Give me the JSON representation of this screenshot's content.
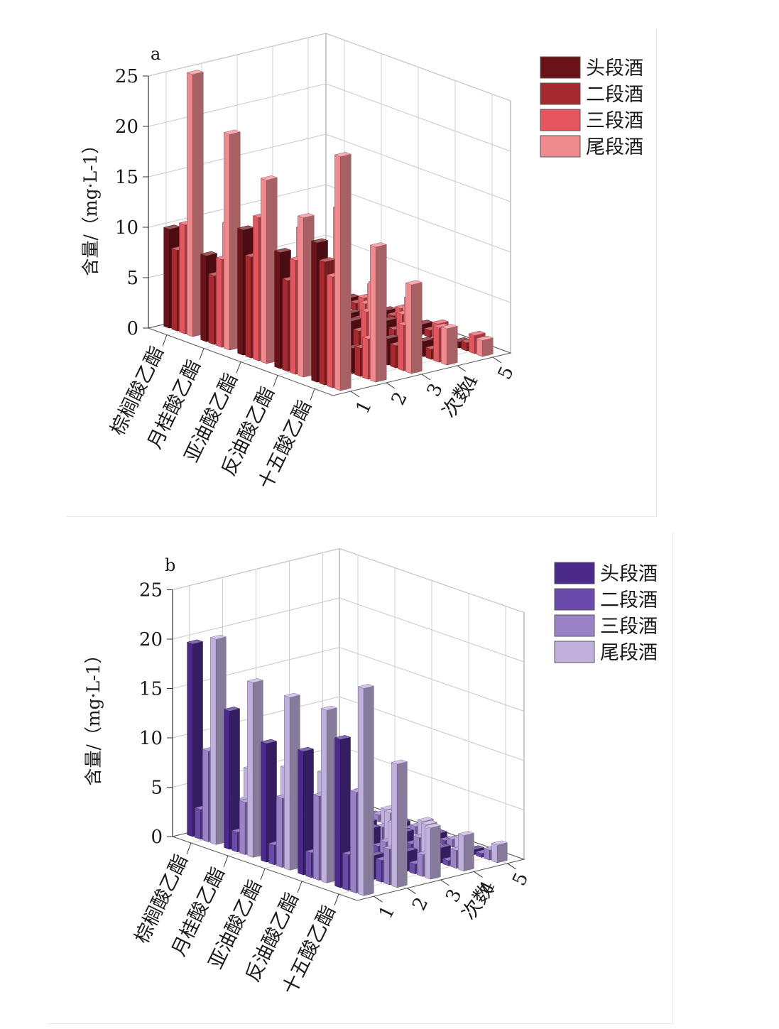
{
  "chart_data": [
    {
      "type": "bar",
      "panel_label": "a",
      "ylabel": "含量/（mg·L-1）",
      "xlabel": "次数",
      "ylim": [
        0,
        25
      ],
      "yticks": [
        "0",
        "5",
        "10",
        "15",
        "20",
        "25"
      ],
      "depth_ticks": [
        "1",
        "2",
        "3",
        "4",
        "5"
      ],
      "categories": [
        "棕榈酸乙酯",
        "月桂酸乙酯",
        "亚油酸乙酯",
        "反油酸乙酯",
        "十五酸乙酯"
      ],
      "legend": [
        "头段酒",
        "二段酒",
        "三段酒",
        "尾段酒"
      ],
      "colors": [
        "#6b1219",
        "#a62b30",
        "#e4555e",
        "#ef8a8f"
      ],
      "series": [
        {
          "name": "头段酒",
          "values": [
            [
              9.8,
              8.5,
              12.4,
              11.5,
              13.8
            ],
            [
              5.3,
              3.5,
              4.2,
              3.4,
              2.5
            ],
            [
              2.8,
              2.5,
              2.3,
              3.0,
              2.6
            ],
            [
              2.2,
              2.0,
              1.6,
              2.2,
              1.5
            ],
            [
              1.0,
              0.9,
              1.0,
              1.0,
              0.6
            ]
          ]
        },
        {
          "name": "二段酒",
          "values": [
            [
              8.0,
              6.8,
              10.0,
              9.0,
              12.2
            ],
            [
              2.3,
              2.8,
              2.8,
              2.3,
              2.8
            ],
            [
              2.0,
              2.2,
              2.0,
              2.3,
              2.2
            ],
            [
              1.5,
              1.2,
              1.3,
              1.6,
              1.0
            ],
            [
              0.5,
              0.7,
              0.8,
              0.7,
              0.8
            ]
          ]
        },
        {
          "name": "三段酒",
          "values": [
            [
              10.8,
              8.7,
              14.2,
              11.3,
              11.0
            ],
            [
              4.8,
              4.5,
              7.9,
              4.5,
              4.0
            ],
            [
              2.9,
              3.8,
              4.0,
              4.5,
              4.5
            ],
            [
              2.8,
              3.0,
              3.1,
              3.4,
              3.4
            ],
            [
              0.9,
              1.5,
              1.8,
              1.6,
              1.8
            ]
          ]
        },
        {
          "name": "尾段酒",
          "values": [
            [
              26.0,
              21.4,
              18.2,
              15.8,
              23.2
            ],
            [
              10.3,
              11.2,
              12.5,
              15.8,
              13.4
            ],
            [
              4.2,
              5.5,
              6.7,
              7.6,
              8.8
            ],
            [
              4.6,
              3.6,
              5.2,
              5.2,
              3.6
            ],
            [
              1.2,
              1.2,
              2.2,
              1.4,
              1.6
            ]
          ]
        }
      ]
    },
    {
      "type": "bar",
      "panel_label": "b",
      "ylabel": "含量/（mg·L-1）",
      "xlabel": "次数",
      "ylim": [
        0,
        25
      ],
      "yticks": [
        "0",
        "5",
        "10",
        "15",
        "20",
        "25"
      ],
      "depth_ticks": [
        "1",
        "2",
        "3",
        "4",
        "5"
      ],
      "categories": [
        "棕榈酸乙酯",
        "月桂酸乙酯",
        "亚油酸乙酯",
        "反油酸乙酯",
        "十五酸乙酯"
      ],
      "legend": [
        "头段酒",
        "二段酒",
        "三段酒",
        "尾段酒"
      ],
      "colors": [
        "#4b2a8a",
        "#6a4aaa",
        "#9a82c6",
        "#c0b0dd"
      ],
      "series": [
        {
          "name": "头段酒",
          "values": [
            [
              19.5,
              14.0,
              12.0,
              12.5,
              15.0
            ],
            [
              3.0,
              2.5,
              3.6,
              2.8,
              2.4
            ],
            [
              2.6,
              2.5,
              2.5,
              3.0,
              2.0
            ],
            [
              1.8,
              1.8,
              1.5,
              1.8,
              1.5
            ],
            [
              0.8,
              0.8,
              0.6,
              0.8,
              0.5
            ]
          ]
        },
        {
          "name": "二段酒",
          "values": [
            [
              3.0,
              2.0,
              2.0,
              2.5,
              3.6
            ],
            [
              1.6,
              1.8,
              1.5,
              2.0,
              2.2
            ],
            [
              1.0,
              1.2,
              1.6,
              1.5,
              1.0
            ],
            [
              0.8,
              0.7,
              0.8,
              0.9,
              0.5
            ],
            [
              0.4,
              0.4,
              0.3,
              0.4,
              0.4
            ]
          ]
        },
        {
          "name": "三段酒",
          "values": [
            [
              9.2,
              5.3,
              7.0,
              8.5,
              10.2
            ],
            [
              3.3,
              3.0,
              3.4,
              3.6,
              3.6
            ],
            [
              2.6,
              2.3,
              2.6,
              2.2,
              2.2
            ],
            [
              1.6,
              1.8,
              1.6,
              1.8,
              1.8
            ],
            [
              1.0,
              0.7,
              0.8,
              0.8,
              1.0
            ]
          ]
        },
        {
          "name": "尾段酒",
          "values": [
            [
              20.8,
              17.7,
              17.5,
              17.5,
              21.0
            ],
            [
              6.8,
              8.2,
              9.0,
              8.5,
              12.5
            ],
            [
              3.0,
              3.8,
              4.6,
              4.4,
              5.2
            ],
            [
              2.2,
              3.0,
              3.3,
              3.4,
              3.6
            ],
            [
              1.5,
              1.5,
              1.6,
              1.2,
              1.8
            ]
          ]
        }
      ]
    }
  ]
}
